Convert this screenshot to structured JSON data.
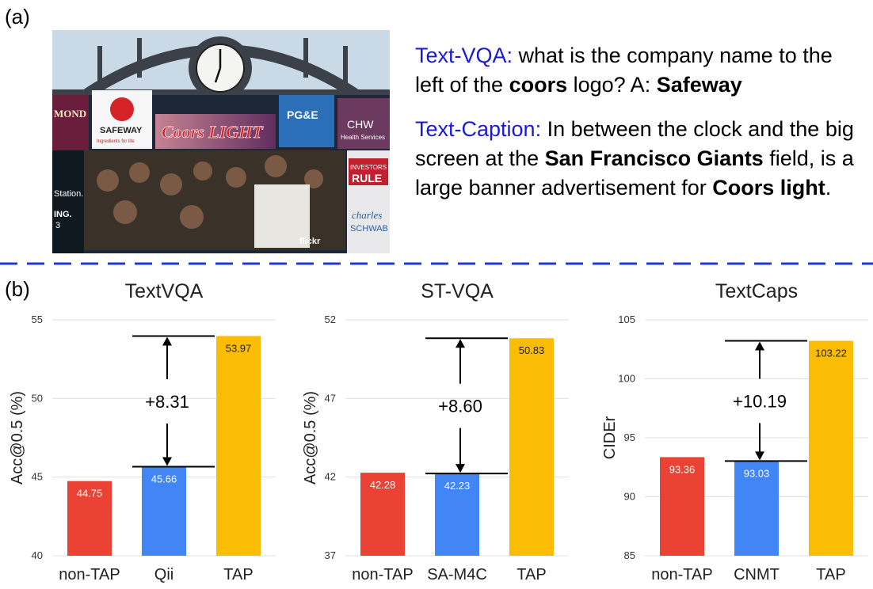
{
  "panel_a_label": "(a)",
  "panel_b_label": "(b)",
  "vqa": {
    "tag": "Text-VQA:",
    "t1": " what is the company name to the left of the ",
    "b1": "coors",
    "t2": " logo? A: ",
    "b2": "Safeway"
  },
  "caption": {
    "tag": "Text-Caption:",
    "t1": " In between the clock and the big screen at the ",
    "b1": "San Francisco Giants",
    "t2": " field, is a large banner advertisement for ",
    "b2": "Coors light",
    "t3": "."
  },
  "photo": {
    "signs": [
      "MOND",
      "SAFEWAY",
      "Ingredients for life",
      "Coors LIGHT",
      "PG&E",
      "CHW",
      "Health Services",
      "INVESTORS",
      "RULE",
      "charles",
      "SCHWAB",
      "flickr",
      "Station.",
      "ING.",
      "3"
    ],
    "colors": {
      "sky": "#c9d9e6",
      "steel": "#3c4048",
      "board": "#1c2838",
      "coors": "#b81b2a",
      "safeway_red": "#d6232a"
    }
  },
  "colors": {
    "red": "#ea4335",
    "blue": "#4285f4",
    "yellow": "#fbbc04",
    "divider": "#1f3ad8",
    "grid": "#e0e0e0"
  },
  "chart_data": [
    {
      "type": "bar",
      "title": "TextVQA",
      "ylabel": "Acc@0.5 (%)",
      "ylim": [
        40,
        55
      ],
      "yticks": [
        40,
        45,
        50,
        55
      ],
      "categories": [
        "non-TAP",
        "Qii",
        "TAP"
      ],
      "values": [
        44.75,
        45.66,
        53.97
      ],
      "value_labels": [
        "44.75",
        "45.66",
        "53.97"
      ],
      "bar_colors": [
        "red",
        "blue",
        "yellow"
      ],
      "annotation": {
        "text": "+8.31",
        "from": 45.66,
        "to": 53.97
      }
    },
    {
      "type": "bar",
      "title": "ST-VQA",
      "ylabel": "Acc@0.5 (%)",
      "ylim": [
        37,
        52
      ],
      "yticks": [
        37,
        42,
        47,
        52
      ],
      "categories": [
        "non-TAP",
        "SA-M4C",
        "TAP"
      ],
      "values": [
        42.28,
        42.23,
        50.83
      ],
      "value_labels": [
        "42.28",
        "42.23",
        "50.83"
      ],
      "bar_colors": [
        "red",
        "blue",
        "yellow"
      ],
      "annotation": {
        "text": "+8.60",
        "from": 42.23,
        "to": 50.83
      }
    },
    {
      "type": "bar",
      "title": "TextCaps",
      "ylabel": "CIDEr",
      "ylim": [
        85,
        105
      ],
      "yticks": [
        85,
        90,
        95,
        100,
        105
      ],
      "categories": [
        "non-TAP",
        "CNMT",
        "TAP"
      ],
      "values": [
        93.36,
        93.03,
        103.22
      ],
      "value_labels": [
        "93.36",
        "93.03",
        "103.22"
      ],
      "bar_colors": [
        "red",
        "blue",
        "yellow"
      ],
      "annotation": {
        "text": "+10.19",
        "from": 93.03,
        "to": 103.22
      }
    }
  ]
}
